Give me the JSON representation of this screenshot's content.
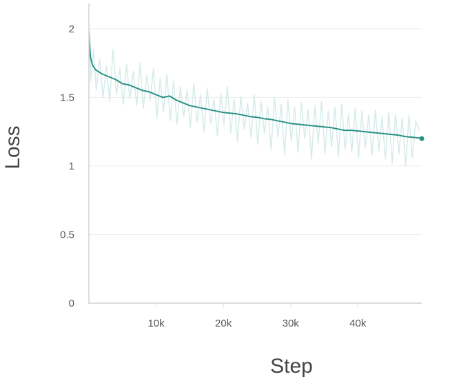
{
  "chart_data": {
    "type": "line",
    "title": "",
    "xlabel": "Step",
    "ylabel": "Loss",
    "xlim": [
      0,
      49500
    ],
    "ylim": [
      0,
      2.2
    ],
    "grid": true,
    "x_ticks": [
      10000,
      20000,
      30000,
      40000
    ],
    "x_tick_labels": [
      "10k",
      "20k",
      "30k",
      "40k"
    ],
    "y_ticks": [
      0,
      0.5,
      1,
      1.5,
      2
    ],
    "y_tick_labels": [
      "0",
      "0.5",
      "1",
      "1.5",
      "2"
    ],
    "series": [
      {
        "style": "smoothed",
        "color": "#2a9187",
        "x": [
          0,
          200,
          500,
          1000,
          2000,
          3000,
          4000,
          5000,
          6000,
          7000,
          8000,
          9000,
          10000,
          11000,
          12000,
          13000,
          14000,
          15000,
          16000,
          17000,
          18000,
          19000,
          20000,
          21000,
          22000,
          23000,
          24000,
          25000,
          26000,
          27000,
          28000,
          29000,
          30000,
          31000,
          32000,
          33000,
          34000,
          35000,
          36000,
          37000,
          38000,
          39000,
          40000,
          41000,
          42000,
          43000,
          44000,
          45000,
          46000,
          47000,
          48000,
          49000,
          49500
        ],
        "y": [
          2.0,
          1.8,
          1.74,
          1.7,
          1.67,
          1.65,
          1.63,
          1.6,
          1.59,
          1.57,
          1.55,
          1.54,
          1.52,
          1.5,
          1.51,
          1.48,
          1.46,
          1.44,
          1.43,
          1.42,
          1.41,
          1.4,
          1.39,
          1.385,
          1.38,
          1.37,
          1.36,
          1.355,
          1.345,
          1.34,
          1.33,
          1.32,
          1.31,
          1.305,
          1.3,
          1.295,
          1.29,
          1.285,
          1.28,
          1.27,
          1.26,
          1.26,
          1.255,
          1.25,
          1.245,
          1.24,
          1.235,
          1.23,
          1.225,
          1.215,
          1.21,
          1.205,
          1.2
        ]
      },
      {
        "style": "raw",
        "color": "#d5ece9",
        "x": [
          0,
          300,
          700,
          1100,
          1600,
          2100,
          2600,
          3100,
          3600,
          4100,
          4600,
          5100,
          5600,
          6100,
          6600,
          7100,
          7600,
          8100,
          8600,
          9100,
          9600,
          10100,
          10600,
          11100,
          11600,
          12100,
          12600,
          13100,
          13600,
          14100,
          14600,
          15100,
          15600,
          16100,
          16600,
          17100,
          17600,
          18100,
          18600,
          19100,
          19600,
          20100,
          20600,
          21100,
          21600,
          22100,
          22600,
          23100,
          23600,
          24100,
          24600,
          25100,
          25600,
          26100,
          26600,
          27100,
          27600,
          28100,
          28600,
          29100,
          29600,
          30100,
          30600,
          31100,
          31600,
          32100,
          32600,
          33100,
          33600,
          34100,
          34600,
          35100,
          35600,
          36100,
          36600,
          37100,
          37600,
          38100,
          38600,
          39100,
          39600,
          40100,
          40600,
          41100,
          41600,
          42100,
          42600,
          43100,
          43600,
          44100,
          44600,
          45100,
          45600,
          46100,
          46600,
          47100,
          47600,
          48100,
          48600,
          49100
        ],
        "y": [
          2.05,
          1.62,
          1.85,
          1.55,
          1.78,
          1.5,
          1.73,
          1.47,
          1.85,
          1.52,
          1.71,
          1.45,
          1.74,
          1.49,
          1.69,
          1.44,
          1.75,
          1.42,
          1.66,
          1.47,
          1.71,
          1.35,
          1.64,
          1.4,
          1.67,
          1.33,
          1.62,
          1.3,
          1.58,
          1.36,
          1.55,
          1.28,
          1.6,
          1.32,
          1.52,
          1.25,
          1.57,
          1.31,
          1.49,
          1.22,
          1.53,
          1.3,
          1.58,
          1.24,
          1.49,
          1.18,
          1.51,
          1.27,
          1.46,
          1.21,
          1.52,
          1.16,
          1.47,
          1.24,
          1.43,
          1.12,
          1.5,
          1.21,
          1.45,
          1.08,
          1.48,
          1.18,
          1.43,
          1.1,
          1.46,
          1.2,
          1.41,
          1.05,
          1.44,
          1.16,
          1.47,
          1.09,
          1.4,
          1.14,
          1.43,
          1.07,
          1.45,
          1.12,
          1.38,
          1.1,
          1.42,
          1.06,
          1.4,
          1.13,
          1.37,
          1.08,
          1.41,
          1.11,
          1.36,
          1.05,
          1.39,
          1.02,
          1.38,
          1.09,
          1.35,
          1.0,
          1.37,
          1.06,
          1.33,
          1.26
        ]
      }
    ]
  }
}
